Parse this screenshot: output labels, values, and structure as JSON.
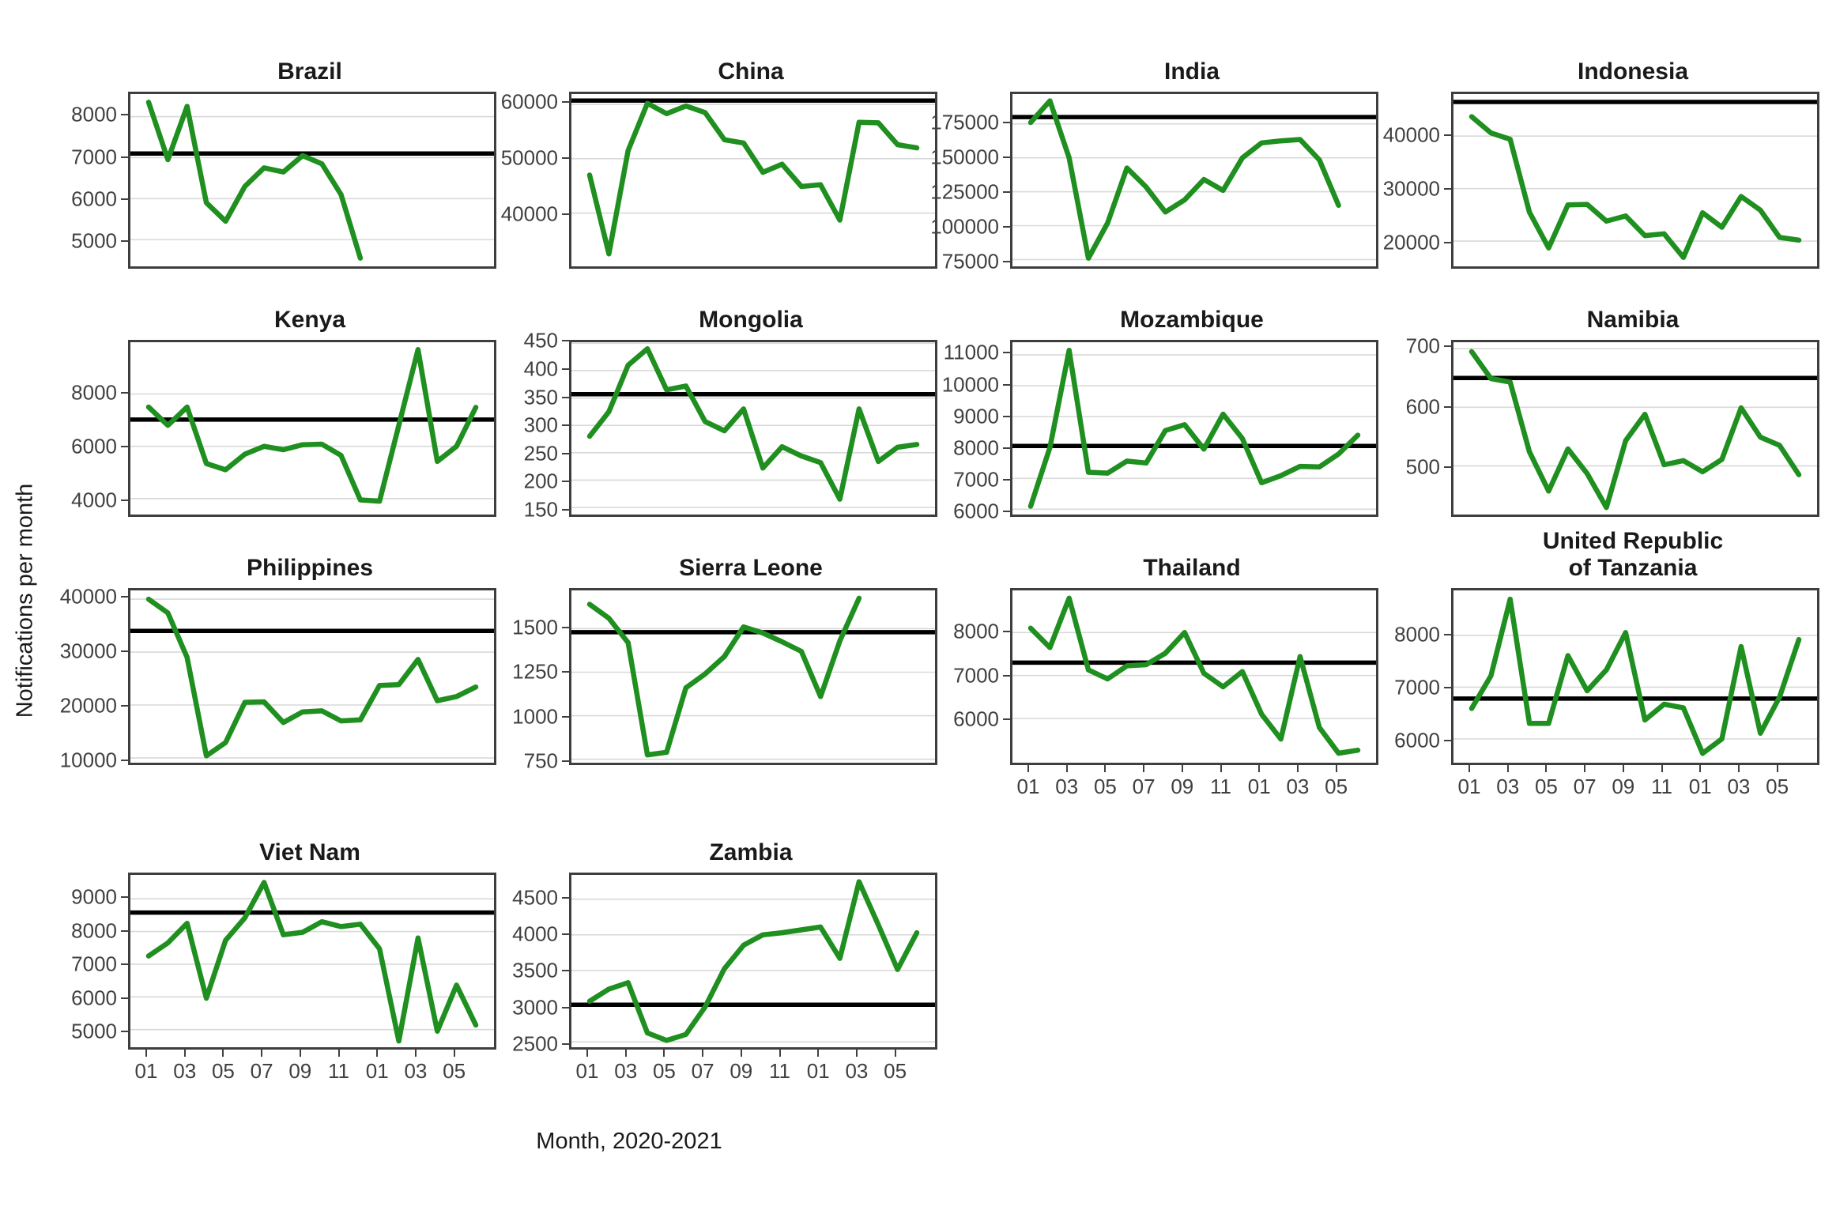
{
  "chart_data": {
    "type": "line",
    "title": "",
    "xlabel": "Month, 2020-2021",
    "ylabel": "Notifications per month",
    "x_tick_labels": [
      "01",
      "03",
      "05",
      "07",
      "09",
      "11",
      "01",
      "03",
      "05"
    ],
    "x_tick_month_indices": [
      0,
      2,
      4,
      6,
      8,
      10,
      12,
      14,
      16
    ],
    "n_month_slots": 18,
    "legend": "none",
    "grid": "horizontal-only",
    "line_color": "#1f8f1f",
    "reference_line_color": "#000000",
    "facets": [
      {
        "title": "Brazil",
        "slug": "brazil",
        "show_x_labels": false,
        "y_ticks": [
          5000,
          6000,
          7000,
          8000
        ],
        "ylim": [
          4350,
          8550
        ],
        "reference": 7100,
        "values": [
          8350,
          6950,
          8250,
          5900,
          5450,
          6300,
          6750,
          6650,
          7050,
          6850,
          6100,
          4550
        ]
      },
      {
        "title": "China",
        "slug": "china",
        "show_x_labels": false,
        "y_ticks": [
          40000,
          50000,
          60000
        ],
        "ylim": [
          30200,
          61900
        ],
        "reference": 60700,
        "values": [
          47000,
          32500,
          51500,
          60200,
          58300,
          59700,
          58500,
          53500,
          52900,
          47500,
          49000,
          44900,
          45200,
          38700,
          56700,
          56600,
          52600,
          52000
        ]
      },
      {
        "title": "India",
        "slug": "india",
        "show_x_labels": false,
        "y_ticks": [
          75000,
          100000,
          125000,
          150000,
          175000
        ],
        "ylim": [
          70000,
          197000
        ],
        "reference": 180000,
        "values": [
          176000,
          192000,
          150000,
          76000,
          102000,
          142500,
          128500,
          110000,
          119000,
          134000,
          126000,
          150000,
          161000,
          162500,
          163500,
          148500,
          115000
        ]
      },
      {
        "title": "Indonesia",
        "slug": "indonesia",
        "show_x_labels": false,
        "y_ticks": [
          20000,
          30000,
          40000
        ],
        "ylim": [
          15200,
          48000
        ],
        "reference": 46500,
        "values": [
          43700,
          40600,
          39400,
          25500,
          18700,
          26900,
          27000,
          23800,
          24800,
          21050,
          21400,
          16900,
          25400,
          22650,
          28500,
          25900,
          20700,
          20200
        ]
      },
      {
        "title": "Kenya",
        "slug": "kenya",
        "show_x_labels": false,
        "y_ticks": [
          4000,
          6000,
          8000
        ],
        "ylim": [
          3390,
          9980
        ],
        "reference": 7020,
        "values": [
          7500,
          6800,
          7500,
          5340,
          5100,
          5700,
          6000,
          5870,
          6060,
          6080,
          5650,
          3950,
          3900,
          6800,
          9700,
          5420,
          6000,
          7490
        ]
      },
      {
        "title": "Mongolia",
        "slug": "mongolia",
        "show_x_labels": false,
        "y_ticks": [
          150,
          200,
          250,
          300,
          350,
          400,
          450
        ],
        "ylim": [
          137,
          452
        ],
        "reference": 357,
        "values": [
          280,
          325,
          410,
          440,
          365,
          372,
          307,
          290,
          330,
          222,
          261,
          244,
          232,
          165,
          330,
          234,
          260,
          265
        ]
      },
      {
        "title": "Mozambique",
        "slug": "mozambique",
        "show_x_labels": false,
        "y_ticks": [
          6000,
          7000,
          8000,
          9000,
          10000,
          11000
        ],
        "ylim": [
          5830,
          11410
        ],
        "reference": 8050,
        "values": [
          6100,
          8000,
          11150,
          7200,
          7170,
          7560,
          7500,
          8550,
          8740,
          7950,
          9080,
          8290,
          6860,
          7090,
          7390,
          7370,
          7790,
          8400
        ]
      },
      {
        "title": "Namibia",
        "slug": "namibia",
        "show_x_labels": false,
        "y_ticks": [
          500,
          600,
          700
        ],
        "ylim": [
          417,
          711
        ],
        "reference": 650,
        "values": [
          695,
          649,
          643,
          524,
          457,
          529,
          487,
          429,
          543,
          588,
          502,
          509,
          490,
          511,
          599,
          549,
          535,
          485
        ]
      },
      {
        "title": "Philippines",
        "slug": "philippines",
        "show_x_labels": false,
        "y_ticks": [
          10000,
          20000,
          30000,
          40000
        ],
        "ylim": [
          9100,
          41650
        ],
        "reference": 34000,
        "values": [
          40000,
          37400,
          29000,
          10400,
          12900,
          20500,
          20600,
          16700,
          18700,
          18900,
          17000,
          17200,
          23700,
          23850,
          28600,
          20800,
          21600,
          23400
        ]
      },
      {
        "title": "Sierra Leone",
        "slug": "sierra-leone",
        "show_x_labels": false,
        "y_ticks": [
          750,
          1000,
          1250,
          1500
        ],
        "ylim": [
          730,
          1720
        ],
        "reference": 1480,
        "values": [
          1640,
          1560,
          1420,
          775,
          790,
          1160,
          1240,
          1340,
          1510,
          1475,
          1425,
          1370,
          1110,
          1430,
          1675
        ]
      },
      {
        "title": "Thailand",
        "slug": "thailand",
        "show_x_labels": true,
        "y_ticks": [
          6000,
          7000,
          8000
        ],
        "ylim": [
          4970,
          8980
        ],
        "reference": 7300,
        "values": [
          8100,
          7650,
          8800,
          7130,
          6920,
          7225,
          7250,
          7520,
          8000,
          7050,
          6735,
          7090,
          6100,
          5520,
          7440,
          5790,
          5190,
          5260
        ]
      },
      {
        "title": "United Republic\nof Tanzania",
        "slug": "united-republic-of-tanzania",
        "show_x_labels": true,
        "y_ticks": [
          6000,
          7000,
          8000
        ],
        "ylim": [
          5540,
          8870
        ],
        "reference": 6780,
        "values": [
          6590,
          7220,
          8700,
          6300,
          6300,
          7610,
          6930,
          7335,
          8055,
          6365,
          6670,
          6600,
          5720,
          6000,
          7785,
          6110,
          6810,
          7920
        ]
      },
      {
        "title": "Viet Nam",
        "slug": "viet-nam",
        "show_x_labels": true,
        "y_ticks": [
          5000,
          6000,
          7000,
          8000,
          9000
        ],
        "ylim": [
          4460,
          9730
        ],
        "reference": 8580,
        "values": [
          7250,
          7650,
          8250,
          5960,
          7730,
          8420,
          9500,
          7900,
          7975,
          8300,
          8150,
          8225,
          7470,
          4650,
          7800,
          4950,
          6360,
          5140
        ]
      },
      {
        "title": "Zambia",
        "slug": "zambia",
        "show_x_labels": true,
        "y_ticks": [
          2500,
          3000,
          3500,
          4000,
          4500
        ],
        "ylim": [
          2425,
          4840
        ],
        "reference": 3020,
        "values": [
          3070,
          3240,
          3330,
          2625,
          2520,
          2605,
          2990,
          3525,
          3855,
          4000,
          4030,
          4070,
          4110,
          3670,
          4745,
          4140,
          3515,
          4030
        ]
      }
    ]
  }
}
